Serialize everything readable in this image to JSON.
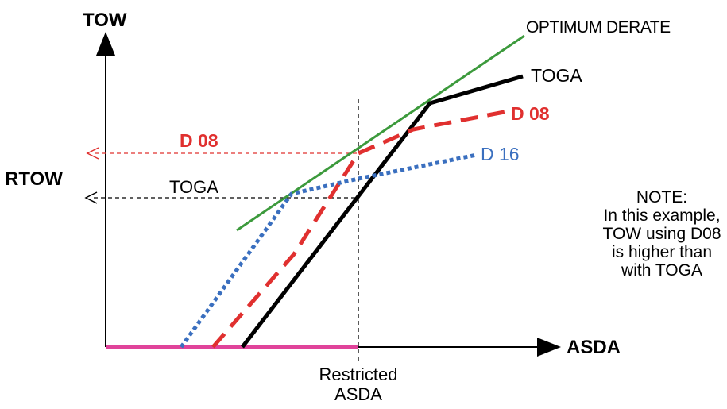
{
  "axes": {
    "y_label": "TOW",
    "x_label": "ASDA",
    "rtow_label": "RTOW",
    "x_marker_label_line1": "Restricted",
    "x_marker_label_line2": "ASDA"
  },
  "lines": {
    "optimum_derate": {
      "label": "OPTIMUM DERATE",
      "color": "#3c9a3c"
    },
    "toga": {
      "label": "TOGA",
      "color": "#000000"
    },
    "d08": {
      "label": "D 08",
      "color": "#e0302f"
    },
    "d16": {
      "label": "D 16",
      "color": "#3a6fbf"
    },
    "ground": {
      "color": "#e0439a"
    }
  },
  "readouts": {
    "d08": "D 08",
    "toga": "TOGA"
  },
  "note": {
    "lines": [
      "NOTE:",
      "In this example,",
      "TOW using D08",
      "is higher than",
      "with TOGA"
    ]
  }
}
